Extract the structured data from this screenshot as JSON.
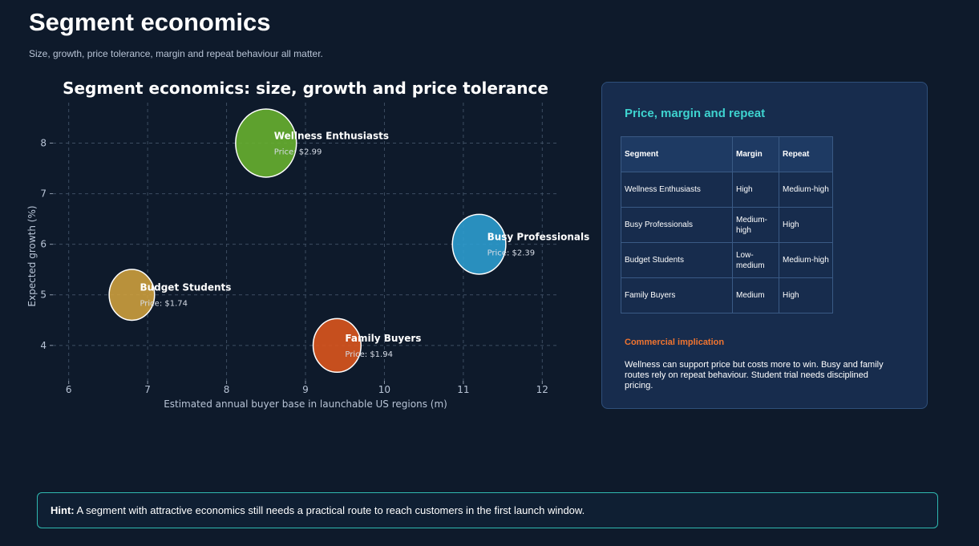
{
  "page": {
    "title": "Segment economics",
    "subtitle": "Size, growth, price tolerance, margin and repeat behaviour all matter."
  },
  "chart_data": {
    "type": "scatter",
    "title": "Segment economics: size, growth and price tolerance",
    "xlabel": "Estimated annual buyer base in launchable US regions (m)",
    "ylabel": "Expected growth (%)",
    "xlim": [
      5.8,
      12.2
    ],
    "ylim": [
      3.3,
      8.8
    ],
    "xticks": [
      6,
      7,
      8,
      9,
      10,
      11,
      12
    ],
    "yticks": [
      4,
      5,
      6,
      7,
      8
    ],
    "grid": true,
    "points": [
      {
        "name": "Wellness Enthusiasts",
        "x": 8.5,
        "y": 8,
        "price_label": "Price: $2.99",
        "price": 2.99,
        "color": "#6ab42f"
      },
      {
        "name": "Busy Professionals",
        "x": 11.2,
        "y": 6,
        "price_label": "Price: $2.39",
        "price": 2.39,
        "color": "#2e9fd3"
      },
      {
        "name": "Budget Students",
        "x": 6.8,
        "y": 5,
        "price_label": "Price: $1.74",
        "price": 1.74,
        "color": "#d2a23e"
      },
      {
        "name": "Family Buyers",
        "x": 9.4,
        "y": 4,
        "price_label": "Price: $1.94",
        "price": 1.94,
        "color": "#e0561c"
      }
    ]
  },
  "panel": {
    "title": "Price, margin and repeat",
    "headers": [
      "Segment",
      "Margin",
      "Repeat"
    ],
    "rows": [
      [
        "Wellness Enthusiasts",
        "High",
        "Medium-high"
      ],
      [
        "Busy Professionals",
        "Medium-high",
        "High"
      ],
      [
        "Budget Students",
        "Low-medium",
        "Medium-high"
      ],
      [
        "Family Buyers",
        "Medium",
        "High"
      ]
    ],
    "implication_title": "Commercial implication",
    "implication_text": "Wellness can support price but costs more to win. Busy and family routes rely on repeat behaviour. Student trial needs disciplined pricing."
  },
  "hint": {
    "label": "Hint:",
    "text": " A segment with attractive economics still needs a practical route to reach customers in the first launch window."
  }
}
